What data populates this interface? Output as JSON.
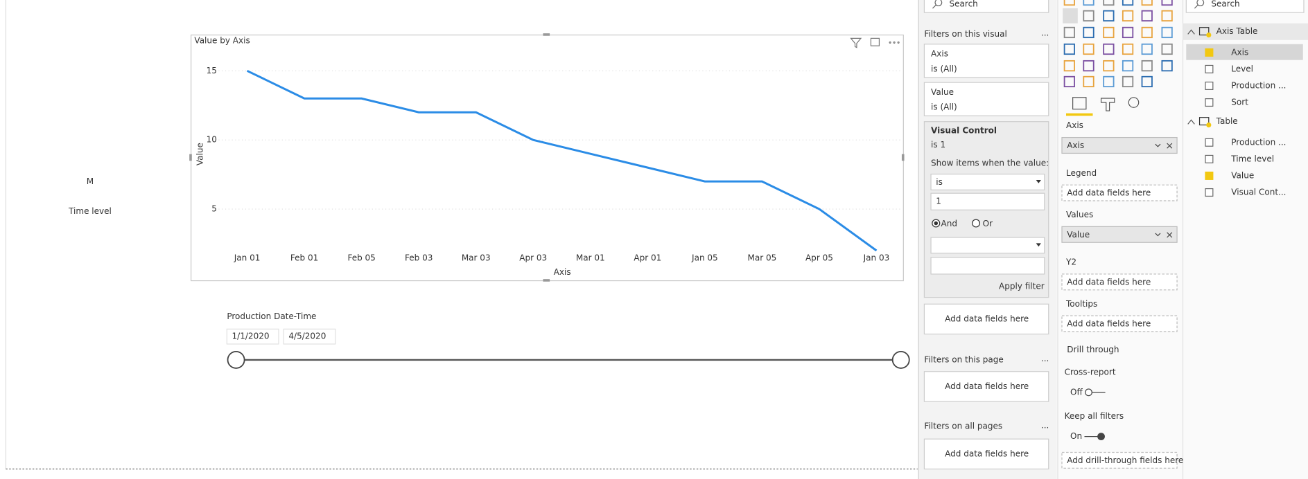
{
  "chart_data": {
    "type": "line",
    "title": "Value by Axis",
    "x_label": "Axis",
    "y_label": "Value",
    "categories": [
      "Jan 01",
      "Feb 01",
      "Feb 05",
      "Feb 03",
      "Mar 03",
      "Apr 03",
      "Mar 01",
      "Apr 01",
      "Jan 05",
      "Mar 05",
      "Apr 05",
      "Jan 03"
    ],
    "values": [
      15,
      13,
      13,
      12,
      12,
      10,
      9,
      8,
      7,
      7,
      5,
      2
    ],
    "color": "#2b8ce6",
    "ylim": [
      2,
      16
    ],
    "yticks": [
      5,
      10,
      15
    ],
    "grid": true
  },
  "ui": {
    "card": {
      "value": "M",
      "label": "Time level"
    },
    "slicer": {
      "title": "Production Date-Time",
      "start": "1/1/2020",
      "end": "4/5/2020"
    },
    "filters": {
      "search": "Search",
      "visual_header": "Filters on this visual",
      "more": "...",
      "cards": [
        {
          "name": "Axis",
          "state": "is (All)"
        },
        {
          "name": "Value",
          "state": "is (All)"
        }
      ],
      "visual_control": {
        "name": "Visual Control",
        "state": "is 1",
        "prompt": "Show items when the value:",
        "operator": "is",
        "input": "1",
        "and": "And",
        "or": "Or",
        "apply": "Apply filter"
      },
      "visual_add": "Add data fields here",
      "page_header": "Filters on this page",
      "page_add": "Add data fields here",
      "all_header": "Filters on all pages",
      "all_add": "Add data fields here"
    },
    "visualizations": {
      "wells": [
        {
          "label": "Axis",
          "field": "Axis"
        },
        {
          "label": "Legend",
          "placeholder": "Add data fields here"
        },
        {
          "label": "Values",
          "field": "Value"
        },
        {
          "label": "Y2",
          "placeholder": "Add data fields here"
        },
        {
          "label": "Tooltips",
          "placeholder": "Add data fields here"
        }
      ],
      "drill_title": "Drill through",
      "cross_report": "Cross-report",
      "cross_state": "Off",
      "keep_filters": "Keep all filters",
      "keep_state": "On",
      "drill_add": "Add drill-through fields here"
    },
    "fields": {
      "search": "Search",
      "tables": [
        {
          "name": "Axis Table",
          "fields": [
            "Axis",
            "Level",
            "Production ...",
            "Sort"
          ]
        },
        {
          "name": "Table",
          "fields": [
            "Production ...",
            "Time level",
            "Value",
            "Visual Cont..."
          ]
        }
      ]
    }
  }
}
